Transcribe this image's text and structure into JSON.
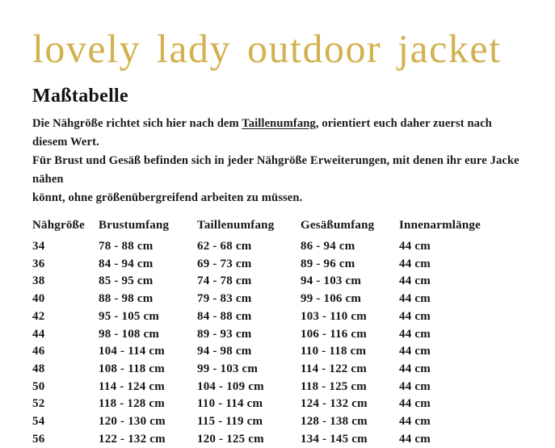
{
  "title": "lovely lady outdoor jacket",
  "heading": "Maßtabelle",
  "intro": {
    "line1_part1": "Die Nähgröße richtet sich hier nach dem ",
    "line1_underlined": "Taillenumfang",
    "line1_part2": ", orientiert euch daher zuerst nach diesem Wert.",
    "line2": "Für Brust und Gesäß befinden sich in jeder Nähgröße Erweiterungen, mit denen ihr eure Jacke nähen",
    "line3": "könnt, ohne größenübergreifend arbeiten zu müssen."
  },
  "colors": {
    "title_gold": "#d2b14e",
    "text": "#1b1b1b",
    "background": "#ffffff"
  },
  "table": {
    "headers": [
      "Nähgröße",
      "Brustumfang",
      "Taillenumfang",
      "Gesäßumfang",
      "Innenarmlänge"
    ],
    "rows": [
      [
        "34",
        "78 - 88 cm",
        "62 - 68 cm",
        "86 - 94 cm",
        "44 cm"
      ],
      [
        "36",
        "84 - 94 cm",
        "69 - 73 cm",
        "89 - 96 cm",
        "44 cm"
      ],
      [
        "38",
        "85 - 95 cm",
        "74 - 78 cm",
        "94 - 103 cm",
        "44 cm"
      ],
      [
        "40",
        "88 - 98 cm",
        "79 - 83 cm",
        "99 - 106 cm",
        "44 cm"
      ],
      [
        "42",
        "95 - 105 cm",
        "84 - 88 cm",
        "103 - 110 cm",
        "44 cm"
      ],
      [
        "44",
        "98 - 108 cm",
        "89 - 93 cm",
        "106 - 116 cm",
        "44 cm"
      ],
      [
        "46",
        "104 - 114 cm",
        "94 - 98 cm",
        "110 - 118 cm",
        "44 cm"
      ],
      [
        "48",
        "108 - 118 cm",
        "99 - 103 cm",
        "114 - 122 cm",
        "44 cm"
      ],
      [
        "50",
        "114 - 124 cm",
        "104 - 109 cm",
        "118 - 125 cm",
        "44 cm"
      ],
      [
        "52",
        "118 - 128 cm",
        "110 - 114 cm",
        "124 - 132 cm",
        "44 cm"
      ],
      [
        "54",
        "120 - 130 cm",
        "115 - 119 cm",
        "128 - 138 cm",
        "44 cm"
      ],
      [
        "56",
        "122 - 132 cm",
        "120 - 125 cm",
        "134 - 145 cm",
        "44 cm"
      ]
    ]
  }
}
